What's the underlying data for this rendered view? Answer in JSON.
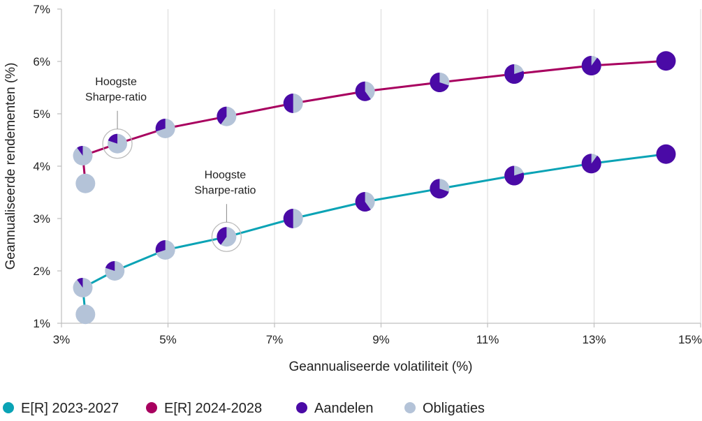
{
  "chart_data": {
    "type": "scatter",
    "xlabel": "Geannualiseerde volatiliteit (%)",
    "ylabel": "Geannualiseerde rendementen (%)",
    "xlim": [
      3,
      15
    ],
    "ylim": [
      1,
      7
    ],
    "x_ticks": [
      "3%",
      "5%",
      "7%",
      "9%",
      "11%",
      "13%",
      "15%"
    ],
    "x_tick_values": [
      3,
      5,
      7,
      9,
      11,
      13,
      15
    ],
    "y_ticks": [
      "1%",
      "2%",
      "3%",
      "4%",
      "5%",
      "6%",
      "7%"
    ],
    "y_tick_values": [
      1,
      2,
      3,
      4,
      5,
      6,
      7
    ],
    "grid": "vertical",
    "legend_position": "bottom",
    "colors": {
      "series_2023": "#0aa3b5",
      "series_2024": "#a8005f",
      "equities": "#4a0aa6",
      "bonds": "#b4c3d8",
      "grid": "#d9d9d9",
      "axis": "#bfbfbf"
    },
    "series": [
      {
        "name": "E[R] 2023-2027",
        "color": "#0aa3b5",
        "points": [
          {
            "x": 3.45,
            "y": 1.17,
            "equity": 0
          },
          {
            "x": 3.4,
            "y": 1.68,
            "equity": 10
          },
          {
            "x": 4.0,
            "y": 2.0,
            "equity": 20
          },
          {
            "x": 4.95,
            "y": 2.4,
            "equity": 30
          },
          {
            "x": 6.1,
            "y": 2.65,
            "equity": 40
          },
          {
            "x": 7.35,
            "y": 3.0,
            "equity": 50
          },
          {
            "x": 8.7,
            "y": 3.32,
            "equity": 60
          },
          {
            "x": 10.1,
            "y": 3.57,
            "equity": 70
          },
          {
            "x": 11.5,
            "y": 3.82,
            "equity": 80
          },
          {
            "x": 12.95,
            "y": 4.05,
            "equity": 90
          },
          {
            "x": 14.35,
            "y": 4.23,
            "equity": 100
          }
        ]
      },
      {
        "name": "E[R] 2024-2028",
        "color": "#a8005f",
        "points": [
          {
            "x": 3.45,
            "y": 3.67,
            "equity": 0
          },
          {
            "x": 3.4,
            "y": 4.2,
            "equity": 10
          },
          {
            "x": 4.05,
            "y": 4.43,
            "equity": 20
          },
          {
            "x": 4.95,
            "y": 4.72,
            "equity": 30
          },
          {
            "x": 6.1,
            "y": 4.95,
            "equity": 40
          },
          {
            "x": 7.35,
            "y": 5.2,
            "equity": 50
          },
          {
            "x": 8.7,
            "y": 5.43,
            "equity": 60
          },
          {
            "x": 10.1,
            "y": 5.6,
            "equity": 70
          },
          {
            "x": 11.5,
            "y": 5.76,
            "equity": 80
          },
          {
            "x": 12.95,
            "y": 5.92,
            "equity": 90
          },
          {
            "x": 14.35,
            "y": 6.01,
            "equity": 100
          }
        ]
      }
    ],
    "annotations": [
      {
        "text": [
          "Hoogste",
          "Sharpe-ratio"
        ],
        "series": 1,
        "point_index": 2
      },
      {
        "text": [
          "Hoogste",
          "Sharpe-ratio"
        ],
        "series": 0,
        "point_index": 4
      }
    ],
    "legend": [
      {
        "label": "E[R] 2023-2027",
        "color": "#0aa3b5"
      },
      {
        "label": "E[R] 2024-2028",
        "color": "#a8005f"
      },
      {
        "label": "Aandelen",
        "color": "#4a0aa6"
      },
      {
        "label": "Obligaties",
        "color": "#b4c3d8"
      }
    ]
  }
}
